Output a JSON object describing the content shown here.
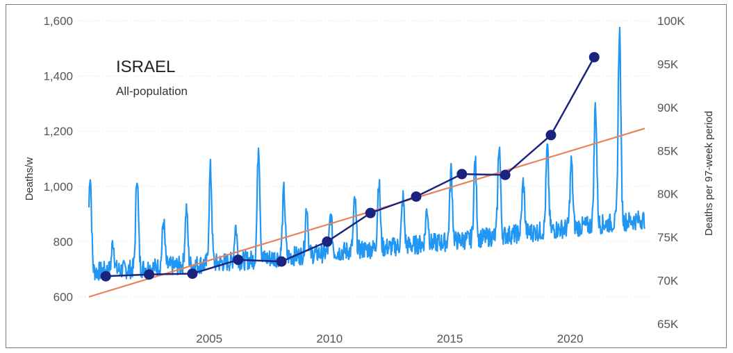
{
  "chart_data": {
    "type": "line",
    "title": "ISRAEL",
    "subtitle": "All-population",
    "ylabel": "Deaths/w",
    "y2label": "Deaths per 97-week period",
    "xlim": [
      2000.0,
      2023.1
    ],
    "ylim": [
      600,
      1600
    ],
    "y2lim": [
      65000,
      100000
    ],
    "xticks": [
      2005,
      2010,
      2015,
      2020
    ],
    "xtick_labels": [
      "2005",
      "2010",
      "2015",
      "2020"
    ],
    "yticks": [
      600,
      800,
      1000,
      1200,
      1400,
      1600
    ],
    "ytick_labels": [
      "600",
      "800",
      "1,000",
      "1,200",
      "1,400",
      "1,600"
    ],
    "y2ticks": [
      65000,
      70000,
      75000,
      80000,
      85000,
      90000,
      95000,
      100000
    ],
    "y2tick_labels": [
      "65K",
      "70K",
      "75K",
      "80K",
      "85K",
      "90K",
      "95K",
      "100K"
    ],
    "grid": true,
    "colors": {
      "weekly": "#2196f3",
      "period": "#1a237e",
      "trend": "#e8805a"
    },
    "series": [
      {
        "kind": "weekly",
        "axis": "left",
        "x_start": 2000.0,
        "x_step": 0.0192,
        "baseline": [
          {
            "year": 2000,
            "value": 690
          },
          {
            "year": 2005,
            "value": 720
          },
          {
            "year": 2010,
            "value": 760
          },
          {
            "year": 2015,
            "value": 800
          },
          {
            "year": 2020,
            "value": 850
          },
          {
            "year": 2023,
            "value": 880
          }
        ],
        "peaks": [
          {
            "year": 2000.05,
            "value": 1045
          },
          {
            "year": 2001.0,
            "value": 800
          },
          {
            "year": 2002.0,
            "value": 1045
          },
          {
            "year": 2003.1,
            "value": 875
          },
          {
            "year": 2004.05,
            "value": 920
          },
          {
            "year": 2005.05,
            "value": 1065
          },
          {
            "year": 2006.1,
            "value": 855
          },
          {
            "year": 2007.05,
            "value": 1150
          },
          {
            "year": 2008.1,
            "value": 985
          },
          {
            "year": 2009.05,
            "value": 930
          },
          {
            "year": 2010.05,
            "value": 895
          },
          {
            "year": 2011.05,
            "value": 950
          },
          {
            "year": 2012.05,
            "value": 1020
          },
          {
            "year": 2013.05,
            "value": 960
          },
          {
            "year": 2014.05,
            "value": 920
          },
          {
            "year": 2015.05,
            "value": 1060
          },
          {
            "year": 2016.05,
            "value": 1095
          },
          {
            "year": 2017.05,
            "value": 1155
          },
          {
            "year": 2018.05,
            "value": 1015
          },
          {
            "year": 2019.05,
            "value": 1140
          },
          {
            "year": 2020.05,
            "value": 1090
          },
          {
            "year": 2021.05,
            "value": 1300
          },
          {
            "year": 2022.05,
            "value": 1570
          }
        ]
      },
      {
        "kind": "period",
        "axis": "right",
        "x": [
          2000.7,
          2002.5,
          2004.3,
          2006.2,
          2008.0,
          2009.9,
          2011.7,
          2013.6,
          2015.5,
          2017.3,
          2019.2,
          2021.0
        ],
        "y": [
          70500,
          70700,
          70800,
          72400,
          72200,
          74500,
          77800,
          79700,
          82300,
          82200,
          86800,
          95800
        ]
      },
      {
        "kind": "trend",
        "axis": "left",
        "x": [
          2000.0,
          2023.1
        ],
        "y": [
          600,
          1210
        ]
      }
    ]
  }
}
